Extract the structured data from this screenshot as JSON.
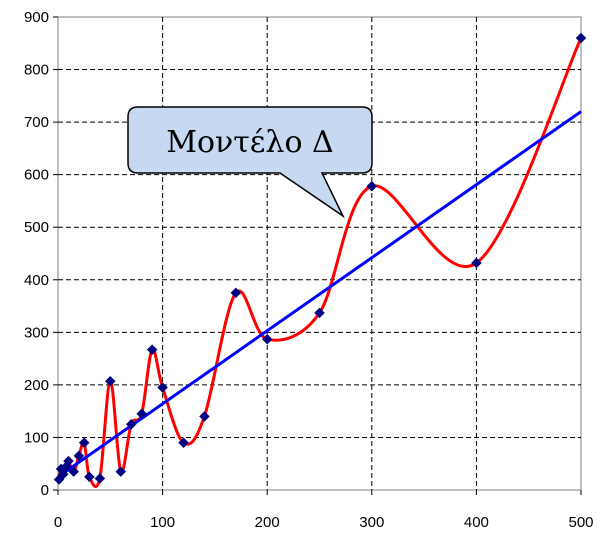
{
  "chart_data": {
    "type": "scatter",
    "title": "",
    "xlabel": "",
    "ylabel": "",
    "xlim": [
      0,
      500
    ],
    "ylim": [
      0,
      900
    ],
    "xticks": [
      0,
      100,
      200,
      300,
      400,
      500
    ],
    "yticks": [
      0,
      100,
      200,
      300,
      400,
      500,
      600,
      700,
      800,
      900
    ],
    "grid": true,
    "grid_style": "dashed",
    "legend": "none",
    "annotation": "Μοντέλο Δ",
    "series": [
      {
        "kind": "markers",
        "color": "#000080",
        "marker": "diamond",
        "x": [
          1,
          3,
          5,
          8,
          10,
          15,
          20,
          25,
          30,
          40,
          50,
          60,
          70,
          80,
          90,
          100,
          120,
          140,
          170,
          200,
          250,
          300,
          400,
          500
        ],
        "y": [
          20,
          40,
          30,
          45,
          55,
          35,
          65,
          90,
          25,
          22,
          207,
          35,
          125,
          145,
          267,
          195,
          90,
          140,
          375,
          287,
          337,
          578,
          432,
          860
        ]
      },
      {
        "kind": "smoothed-curve",
        "color": "#ff0000",
        "x": [
          1,
          3,
          5,
          8,
          10,
          15,
          20,
          25,
          30,
          40,
          50,
          60,
          70,
          80,
          90,
          100,
          120,
          140,
          170,
          200,
          250,
          300,
          400,
          500
        ],
        "y": [
          20,
          40,
          30,
          45,
          55,
          35,
          65,
          90,
          25,
          22,
          207,
          35,
          125,
          145,
          267,
          195,
          90,
          140,
          375,
          287,
          337,
          578,
          432,
          860
        ]
      },
      {
        "kind": "trendline",
        "color": "#0000ff",
        "x": [
          0,
          500
        ],
        "y": [
          25,
          720
        ]
      }
    ]
  }
}
